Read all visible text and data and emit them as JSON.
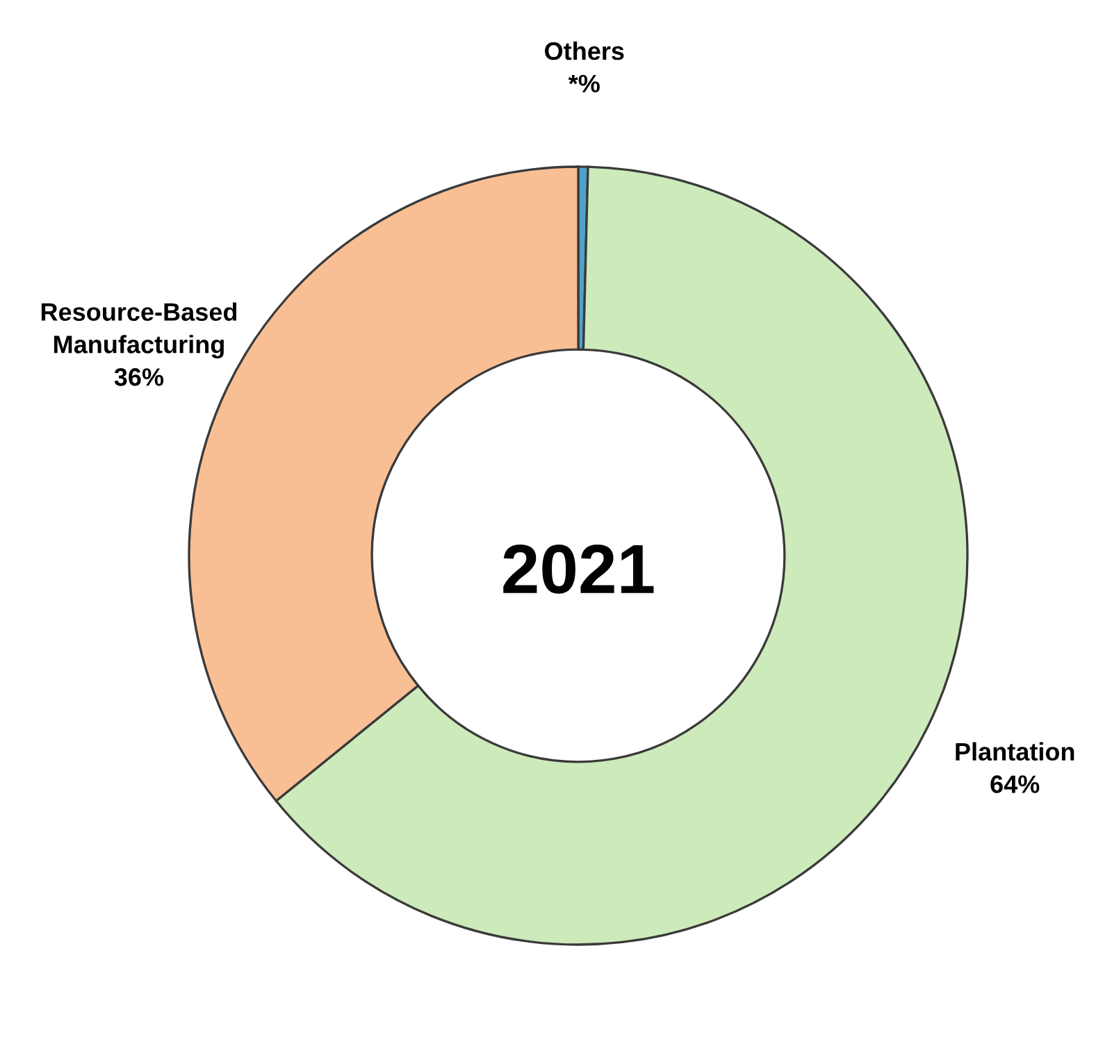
{
  "chart_data": {
    "type": "donut",
    "categories": [
      "Others",
      "Plantation",
      "Resource-Based Manufacturing"
    ],
    "values": [
      0.4,
      64,
      36
    ],
    "value_labels": [
      "*%",
      "64%",
      "36%"
    ],
    "colors": [
      "#4fa3c8",
      "#cdeabb",
      "#f9bf94"
    ],
    "annotations": [
      "2021"
    ],
    "legend": false
  }
}
